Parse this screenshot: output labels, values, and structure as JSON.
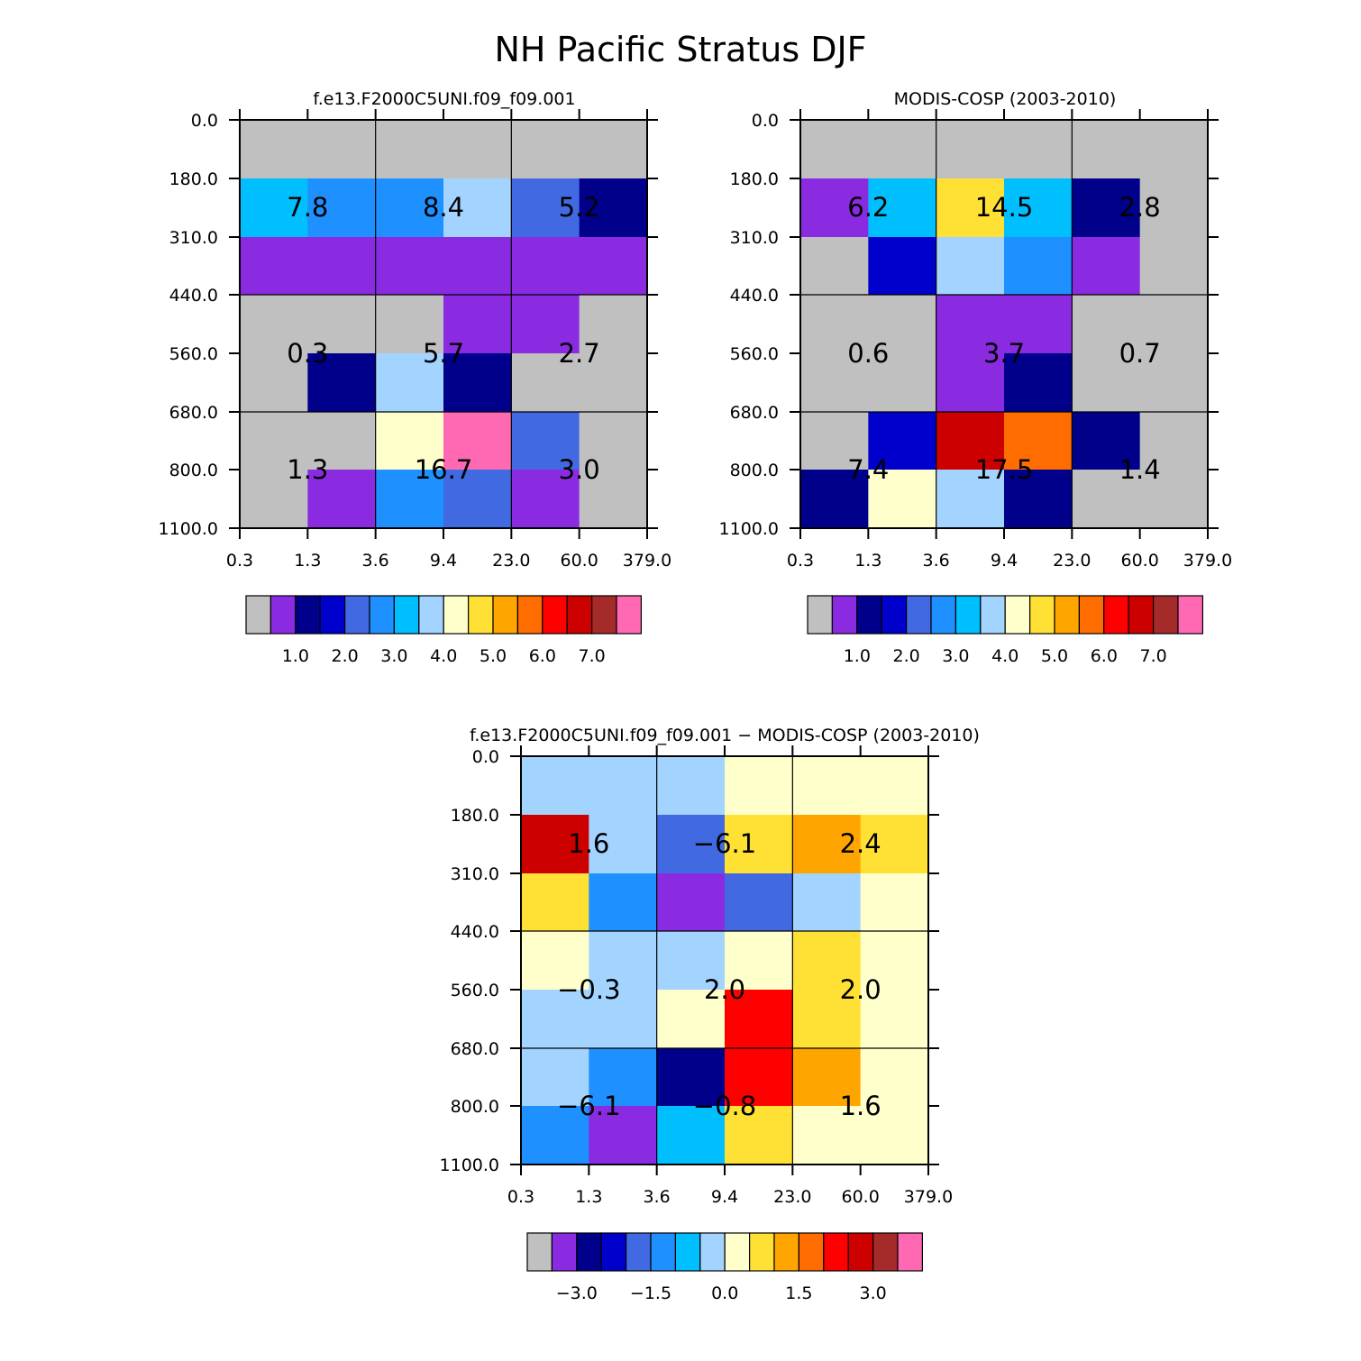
{
  "title": "NH Pacific Stratus DJF",
  "colors": {
    "palette": [
      "#c0c0c0",
      "#8a2be2",
      "#00008b",
      "#0000cd",
      "#4169e1",
      "#1e90ff",
      "#00bfff",
      "#a3d3ff",
      "#ffffcc",
      "#ffe135",
      "#ffa500",
      "#ff6d00",
      "#ff0000",
      "#cd0000",
      "#a52a2a",
      "#ff69b4"
    ]
  },
  "axes": {
    "x_ticks": [
      "0.3",
      "1.3",
      "3.6",
      "9.4",
      "23.0",
      "60.0",
      "379.0"
    ],
    "y_ticks": [
      "0.0",
      "180.0",
      "310.0",
      "440.0",
      "560.0",
      "680.0",
      "800.0",
      "1100.0"
    ]
  },
  "colorbars": {
    "abs": [
      "1.0",
      "2.0",
      "3.0",
      "4.0",
      "5.0",
      "6.0",
      "7.0"
    ],
    "diff": [
      "−3.0",
      "−1.5",
      "0.0",
      "1.5",
      "3.0"
    ]
  },
  "chart_data": [
    {
      "type": "heatmap",
      "title": "f.e13.F2000C5UNI.f09_f09.001",
      "x_bins": [
        "0.3",
        "1.3",
        "3.6",
        "9.4",
        "23.0",
        "60.0",
        "379.0"
      ],
      "y_bins": [
        "0.0",
        "180.0",
        "310.0",
        "440.0",
        "560.0",
        "680.0",
        "800.0",
        "1100.0"
      ],
      "cell_color_index": [
        [
          0,
          0,
          0,
          0,
          0,
          0
        ],
        [
          6,
          5,
          5,
          7,
          4,
          2
        ],
        [
          1,
          1,
          1,
          1,
          1,
          1
        ],
        [
          0,
          0,
          0,
          1,
          1,
          0
        ],
        [
          0,
          2,
          7,
          2,
          0,
          0
        ],
        [
          0,
          0,
          8,
          15,
          4,
          0
        ],
        [
          0,
          1,
          5,
          4,
          1,
          0
        ]
      ],
      "box_values": [
        [
          "",
          "",
          ""
        ],
        [
          "7.8",
          "8.4",
          "5.2"
        ],
        [
          "0.3",
          "5.7",
          "2.7"
        ],
        [
          "1.3",
          "16.7",
          "3.0"
        ]
      ]
    },
    {
      "type": "heatmap",
      "title": "MODIS-COSP (2003-2010)",
      "x_bins": [
        "0.3",
        "1.3",
        "3.6",
        "9.4",
        "23.0",
        "60.0",
        "379.0"
      ],
      "y_bins": [
        "0.0",
        "180.0",
        "310.0",
        "440.0",
        "560.0",
        "680.0",
        "800.0",
        "1100.0"
      ],
      "cell_color_index": [
        [
          0,
          0,
          0,
          0,
          0,
          0
        ],
        [
          1,
          6,
          9,
          6,
          2,
          0
        ],
        [
          0,
          3,
          7,
          5,
          1,
          0
        ],
        [
          0,
          0,
          1,
          1,
          0,
          0
        ],
        [
          0,
          0,
          1,
          2,
          0,
          0
        ],
        [
          0,
          3,
          13,
          11,
          2,
          0
        ],
        [
          2,
          8,
          7,
          2,
          0,
          0
        ]
      ],
      "box_values": [
        [
          "",
          "",
          ""
        ],
        [
          "6.2",
          "14.5",
          "2.8"
        ],
        [
          "0.6",
          "3.7",
          "0.7"
        ],
        [
          "7.4",
          "17.5",
          "1.4"
        ]
      ]
    },
    {
      "type": "heatmap",
      "title": "f.e13.F2000C5UNI.f09_f09.001 − MODIS-COSP (2003-2010)",
      "x_bins": [
        "0.3",
        "1.3",
        "3.6",
        "9.4",
        "23.0",
        "60.0",
        "379.0"
      ],
      "y_bins": [
        "0.0",
        "180.0",
        "310.0",
        "440.0",
        "560.0",
        "680.0",
        "800.0",
        "1100.0"
      ],
      "cell_color_index": [
        [
          7,
          7,
          7,
          8,
          8,
          8
        ],
        [
          13,
          7,
          4,
          9,
          10,
          9
        ],
        [
          9,
          5,
          1,
          4,
          7,
          8
        ],
        [
          8,
          7,
          7,
          8,
          9,
          8
        ],
        [
          7,
          7,
          8,
          12,
          9,
          8
        ],
        [
          7,
          5,
          2,
          12,
          10,
          8
        ],
        [
          5,
          1,
          6,
          9,
          8,
          8
        ]
      ],
      "box_values": [
        [
          "",
          "",
          ""
        ],
        [
          "1.6",
          "−6.1",
          "2.4"
        ],
        [
          "−0.3",
          "2.0",
          "2.0"
        ],
        [
          "−6.1",
          "−0.8",
          "1.6"
        ]
      ]
    }
  ]
}
